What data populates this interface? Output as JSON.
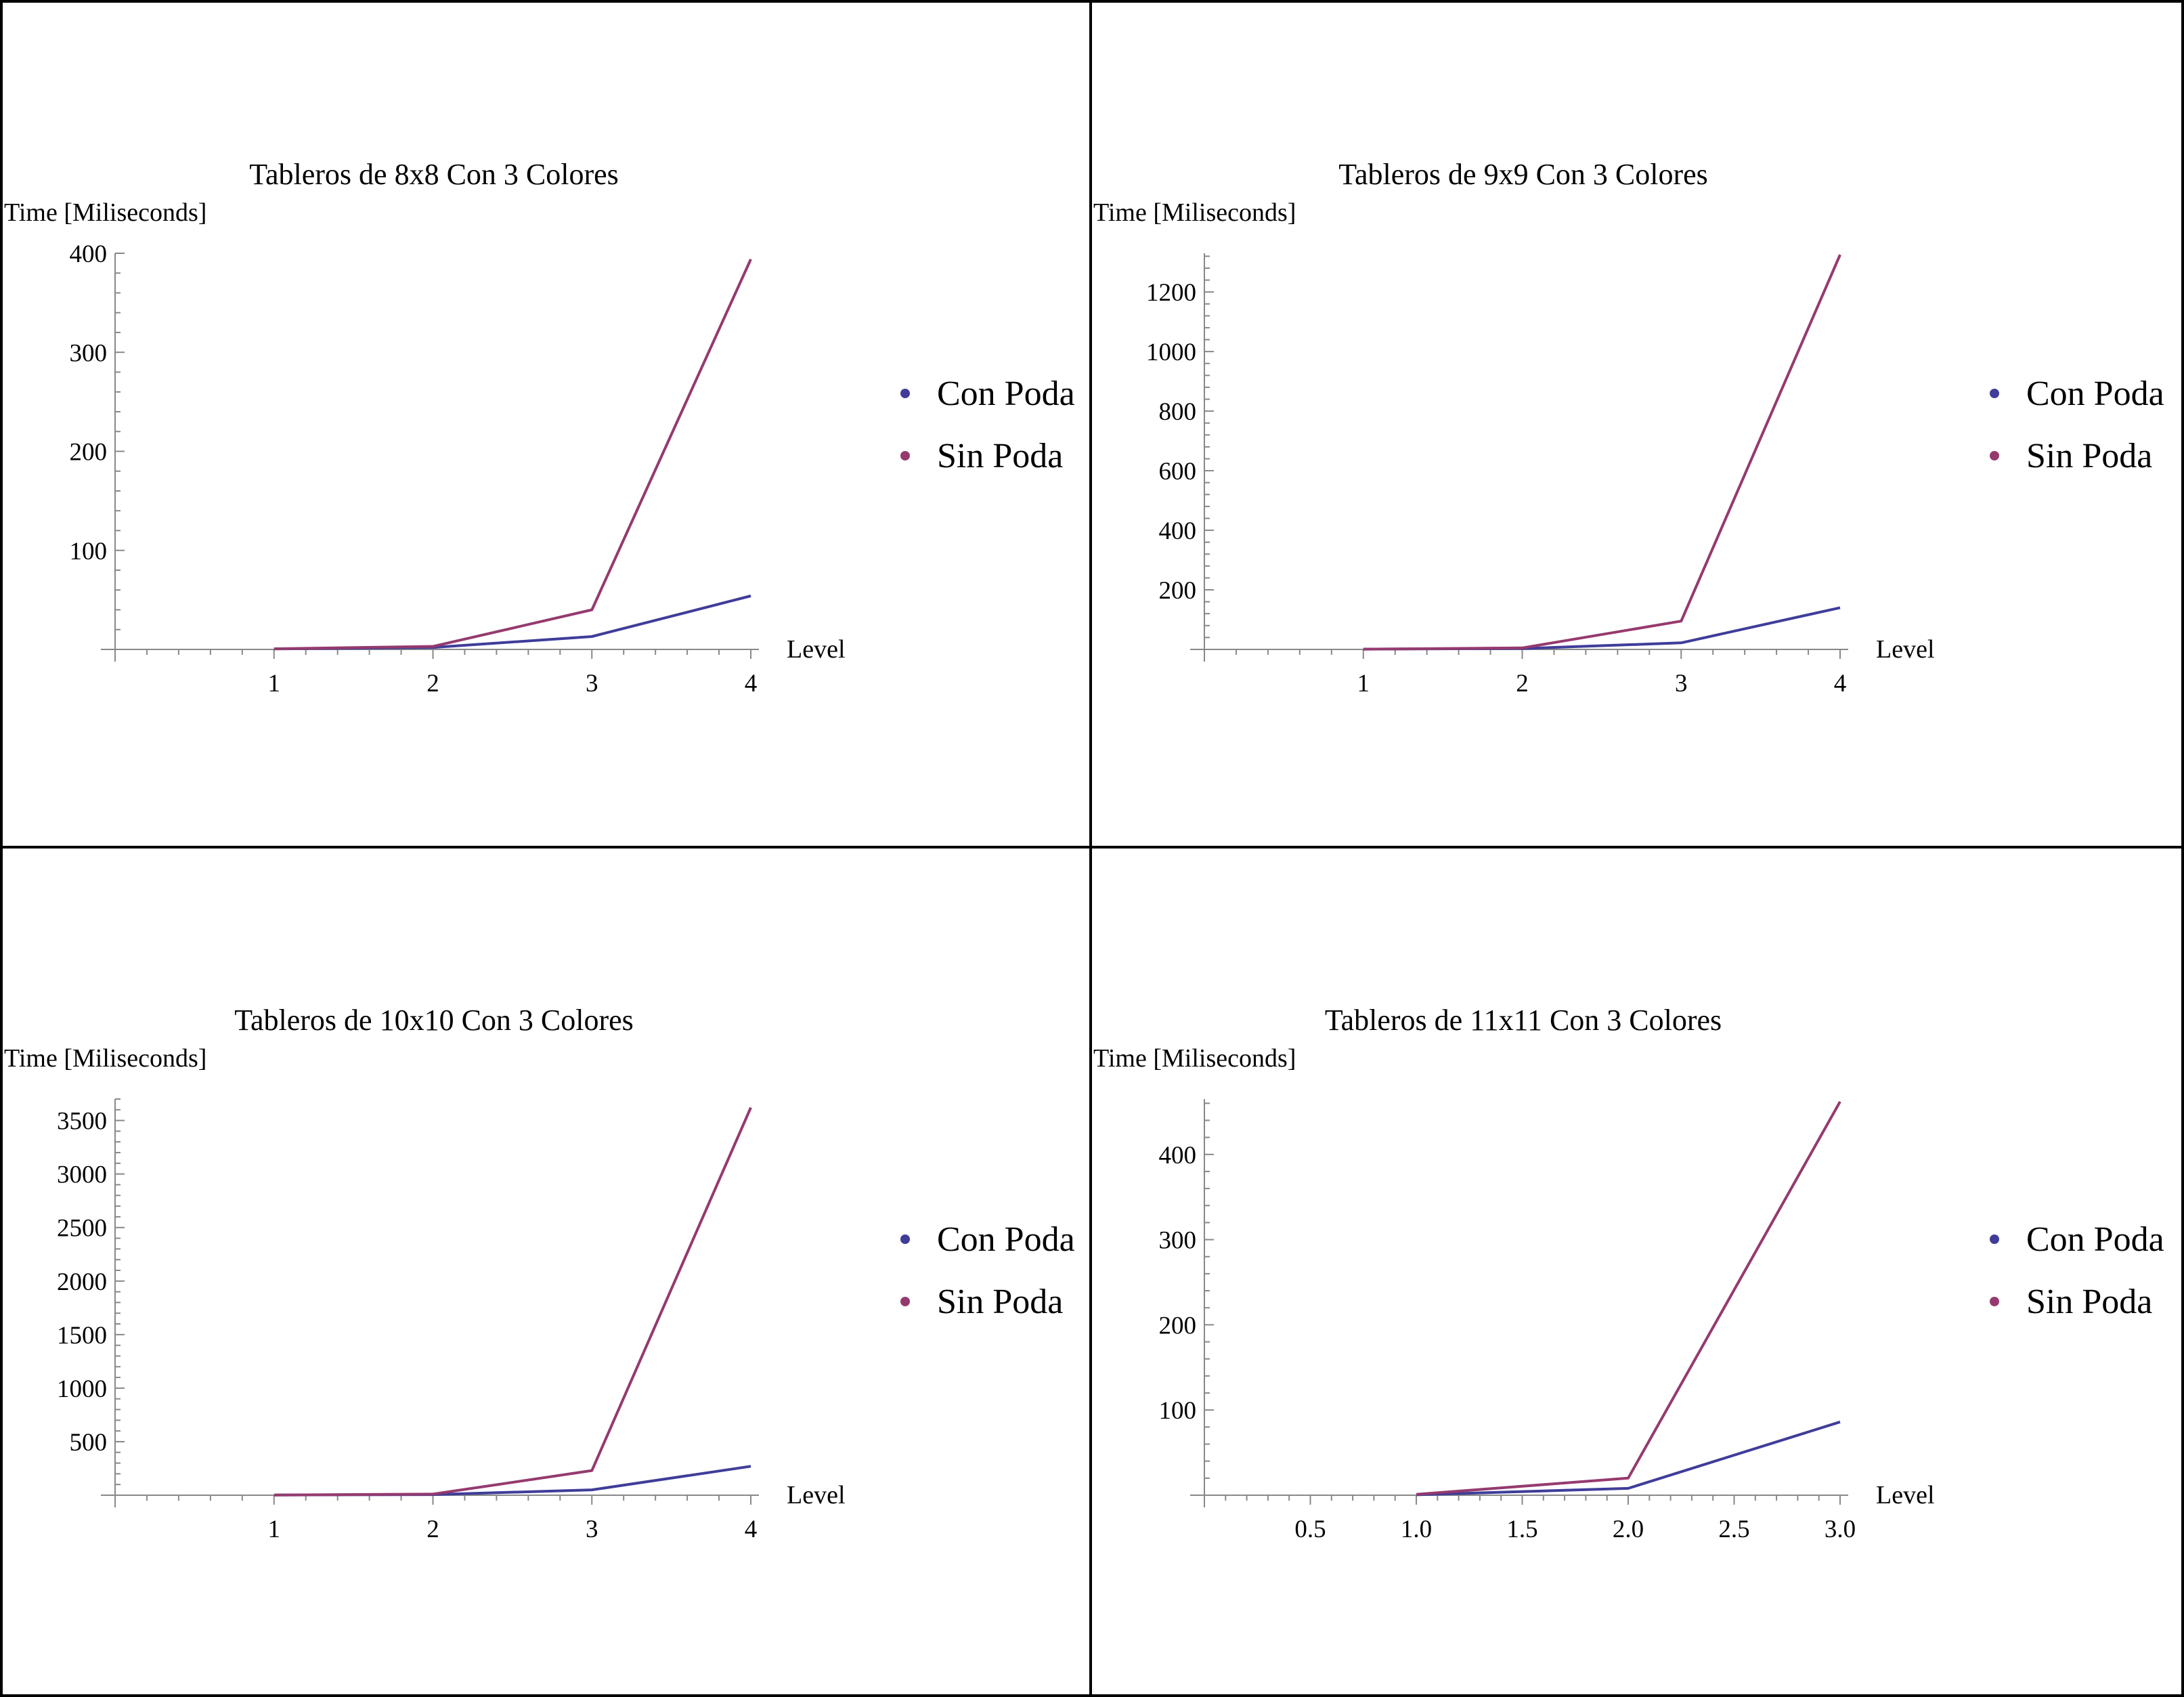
{
  "chart_data": [
    {
      "type": "line",
      "title": "Tableros de 8x8 Con 3 Colores",
      "xlabel": "Level",
      "ylabel": "Time [Miliseconds]",
      "x": [
        1,
        2,
        3,
        4
      ],
      "xlim": [
        0,
        4
      ],
      "ylim": [
        0,
        400
      ],
      "xticks": [
        1,
        2,
        3,
        4
      ],
      "xtick_labels": [
        "1",
        "2",
        "3",
        "4"
      ],
      "yticks": [
        100,
        200,
        300,
        400
      ],
      "ytick_labels": [
        "100",
        "200",
        "300",
        "400"
      ],
      "grid": false,
      "legend_position": "right",
      "series": [
        {
          "name": "Con Poda",
          "color": "#3f3d99",
          "values": [
            0.5,
            2,
            13,
            54
          ]
        },
        {
          "name": "Sin Poda",
          "color": "#953a6e",
          "values": [
            0.6,
            3,
            40,
            394
          ]
        }
      ]
    },
    {
      "type": "line",
      "title": "Tableros de 9x9 Con 3 Colores",
      "xlabel": "Level",
      "ylabel": "Time [Miliseconds]",
      "x": [
        1,
        2,
        3,
        4
      ],
      "xlim": [
        0,
        4
      ],
      "ylim": [
        0,
        1330
      ],
      "xticks": [
        1,
        2,
        3,
        4
      ],
      "xtick_labels": [
        "1",
        "2",
        "3",
        "4"
      ],
      "yticks": [
        200,
        400,
        600,
        800,
        1000,
        1200
      ],
      "ytick_labels": [
        "200",
        "400",
        "600",
        "800",
        "1000",
        "1200"
      ],
      "grid": false,
      "legend_position": "right",
      "series": [
        {
          "name": "Con Poda",
          "color": "#3f3d99",
          "values": [
            1,
            3,
            22,
            140
          ]
        },
        {
          "name": "Sin Poda",
          "color": "#953a6e",
          "values": [
            1,
            5,
            95,
            1325
          ]
        }
      ]
    },
    {
      "type": "line",
      "title": "Tableros de 10x10 Con 3 Colores",
      "xlabel": "Level",
      "ylabel": "Time [Miliseconds]",
      "x": [
        1,
        2,
        3,
        4
      ],
      "xlim": [
        0,
        4
      ],
      "ylim": [
        0,
        3700
      ],
      "xticks": [
        1,
        2,
        3,
        4
      ],
      "xtick_labels": [
        "1",
        "2",
        "3",
        "4"
      ],
      "yticks": [
        500,
        1000,
        1500,
        2000,
        2500,
        3000,
        3500
      ],
      "ytick_labels": [
        "500",
        "1000",
        "1500",
        "2000",
        "2500",
        "3000",
        "3500"
      ],
      "grid": false,
      "legend_position": "right",
      "series": [
        {
          "name": "Con Poda",
          "color": "#3f3d99",
          "values": [
            2,
            6,
            50,
            270
          ]
        },
        {
          "name": "Sin Poda",
          "color": "#953a6e",
          "values": [
            2,
            10,
            230,
            3620
          ]
        }
      ]
    },
    {
      "type": "line",
      "title": "Tableros de 11x11 Con 3 Colores",
      "xlabel": "Level",
      "ylabel": "Time [Miliseconds]",
      "x": [
        1,
        2,
        3
      ],
      "xlim": [
        0,
        3
      ],
      "ylim": [
        0,
        465
      ],
      "xticks": [
        0.5,
        1.0,
        1.5,
        2.0,
        2.5,
        3.0
      ],
      "xtick_labels": [
        "0.5",
        "1.0",
        "1.5",
        "2.0",
        "2.5",
        "3.0"
      ],
      "yticks": [
        100,
        200,
        300,
        400
      ],
      "ytick_labels": [
        "100",
        "200",
        "300",
        "400"
      ],
      "grid": false,
      "legend_position": "right",
      "series": [
        {
          "name": "Con Poda",
          "color": "#3f3d99",
          "values": [
            0.5,
            8,
            86
          ]
        },
        {
          "name": "Sin Poda",
          "color": "#953a6e",
          "values": [
            1,
            20,
            462
          ]
        }
      ]
    }
  ]
}
